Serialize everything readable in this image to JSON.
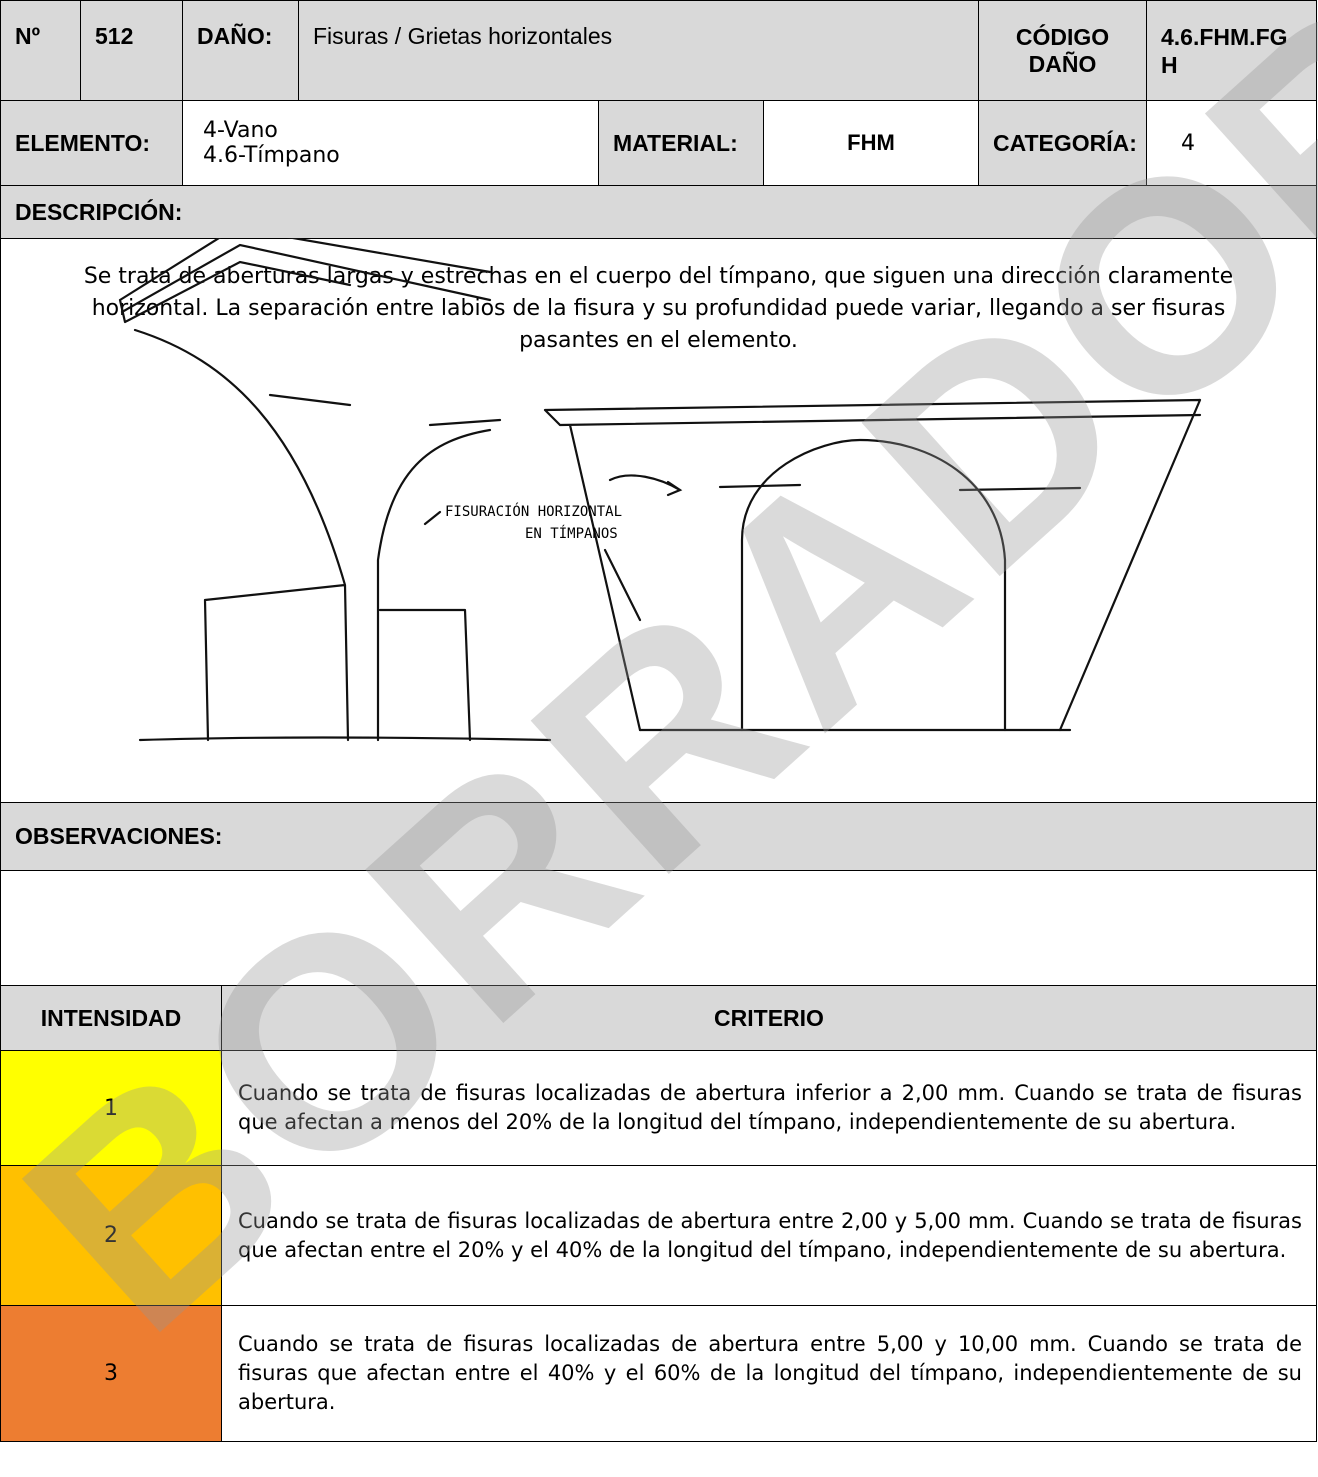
{
  "header": {
    "number_label": "Nº",
    "number": "512",
    "damage_label": "DAÑO:",
    "damage": "Fisuras / Grietas horizontales",
    "code_label": "CÓDIGO DAÑO",
    "code": "4.6.FHM.FGH"
  },
  "element": {
    "element_label": "ELEMENTO:",
    "element_lines": [
      "4-Vano",
      "4.6-Tímpano"
    ],
    "material_label": "MATERIAL:",
    "material": "FHM",
    "category_label": "CATEGORÍA:",
    "category": "4"
  },
  "description": {
    "label": "DESCRIPCIÓN:",
    "text": "Se trata de aberturas largas y estrechas en el cuerpo del tímpano, que siguen una dirección claramente horizontal. La separación entre labios de la fisura y su profundidad puede variar, llegando a ser fisuras pasantes en el elemento.",
    "sketch_labels": [
      "FISURACIÓN HORIZONTAL",
      "EN TÍMPANOS"
    ]
  },
  "observations": {
    "label": "OBSERVACIONES:"
  },
  "intensity_table": {
    "headers": [
      "INTENSIDAD",
      "CRITERIO"
    ],
    "rows": [
      [
        "1",
        "Cuando se trata de fisuras localizadas de abertura inferior a 2,00 mm. Cuando se trata de fisuras que afectan a menos del 20% de la longitud del tímpano, independientemente de su abertura."
      ],
      [
        "2",
        "Cuando se trata de fisuras localizadas de abertura entre 2,00 y 5,00 mm. Cuando se trata de fisuras que afectan entre el 20% y el 40% de la longitud del tímpano, independientemente de su abertura."
      ],
      [
        "3",
        "Cuando se trata de fisuras localizadas de abertura entre 5,00 y 10,00 mm. Cuando se trata de fisuras que afectan entre el 40% y el 60% de la longitud del tímpano, independientemente de su abertura."
      ]
    ]
  },
  "watermark": "BORRADOR"
}
